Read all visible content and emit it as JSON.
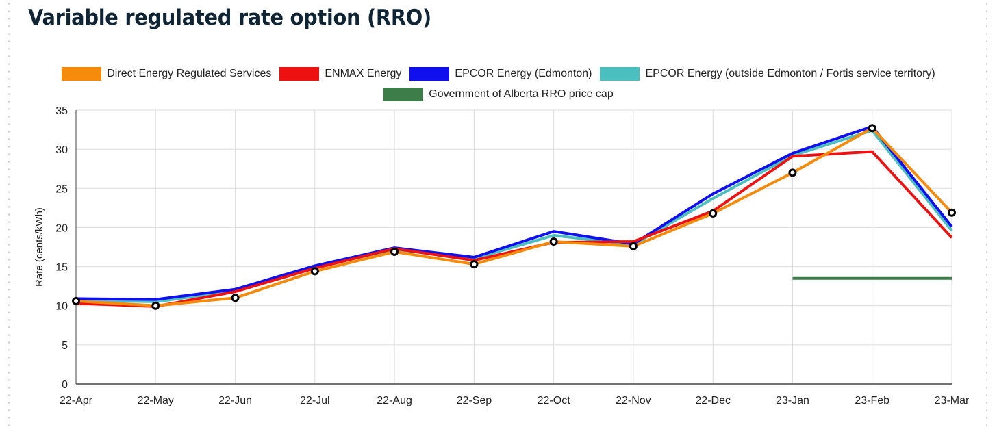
{
  "page": {
    "title": "Variable regulated rate option (RRO)"
  },
  "chart_data": {
    "type": "line",
    "ylabel": "Rate (cents/kWh)",
    "xlabel": "",
    "ylim": [
      0,
      35
    ],
    "yticks": [
      0,
      5,
      10,
      15,
      20,
      25,
      30,
      35
    ],
    "grid": true,
    "legend_position": "top",
    "categories": [
      "22-Apr",
      "22-May",
      "22-Jun",
      "22-Jul",
      "22-Aug",
      "22-Sep",
      "22-Oct",
      "22-Nov",
      "22-Dec",
      "23-Jan",
      "23-Feb",
      "23-Mar"
    ],
    "series": [
      {
        "name": "Direct Energy Regulated Services",
        "color": "#f58a0b",
        "values": [
          10.6,
          10.0,
          11.0,
          14.4,
          16.9,
          15.3,
          18.2,
          17.6,
          21.8,
          27.0,
          32.7,
          21.9
        ],
        "markers": true
      },
      {
        "name": "ENMAX Energy",
        "color": "#ee1111",
        "values": [
          10.3,
          9.9,
          11.8,
          14.8,
          17.3,
          15.8,
          18.1,
          18.2,
          22.1,
          29.1,
          29.7,
          18.7
        ],
        "markers": false
      },
      {
        "name": "EPCOR Energy (Edmonton)",
        "color": "#1010ee",
        "values": [
          10.9,
          10.8,
          12.1,
          15.1,
          17.4,
          16.2,
          19.5,
          17.9,
          24.3,
          29.5,
          32.9,
          20.1
        ],
        "markers": false
      },
      {
        "name": "EPCOR Energy (outside Edmonton / Fortis service territory)",
        "color": "#4bbfbf",
        "values": [
          10.7,
          10.5,
          11.9,
          14.9,
          17.2,
          16.0,
          19.0,
          17.8,
          23.7,
          29.2,
          32.4,
          19.6
        ],
        "markers": false
      },
      {
        "name": "Government of Alberta RRO price cap",
        "color": "#3c7d4a",
        "values": [
          null,
          null,
          null,
          null,
          null,
          null,
          null,
          null,
          null,
          13.5,
          13.5,
          13.5
        ],
        "markers": false
      }
    ]
  }
}
